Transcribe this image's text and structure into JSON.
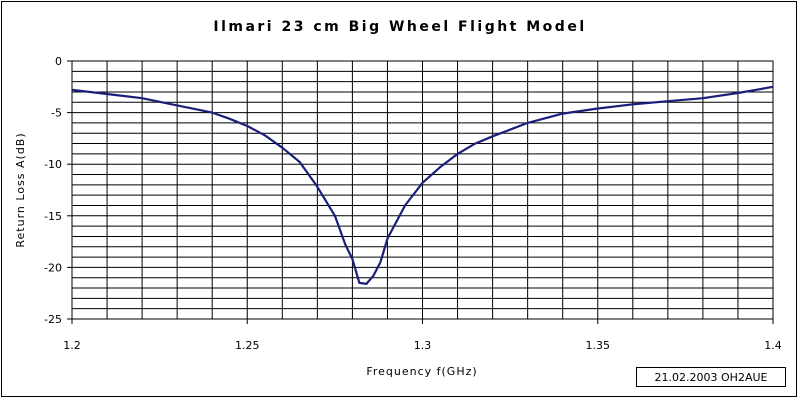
{
  "chart_data": {
    "type": "line",
    "title": "Ilmari 23 cm Big Wheel Flight Model",
    "xlabel": "Frequency f(GHz)",
    "ylabel": "Return Loss A(dB)",
    "xlim": [
      1.2,
      1.4
    ],
    "ylim": [
      -25,
      0
    ],
    "x_ticks": [
      "1.2",
      "1.25",
      "1.3",
      "1.35",
      "1.4"
    ],
    "y_ticks": [
      "0",
      "-5",
      "-10",
      "-15",
      "-20",
      "-25"
    ],
    "grid": true,
    "series": [
      {
        "color": "#1a1f7a",
        "x": [
          1.2,
          1.21,
          1.22,
          1.23,
          1.24,
          1.245,
          1.25,
          1.255,
          1.26,
          1.265,
          1.27,
          1.275,
          1.278,
          1.28,
          1.282,
          1.284,
          1.286,
          1.288,
          1.29,
          1.295,
          1.3,
          1.305,
          1.31,
          1.315,
          1.32,
          1.33,
          1.34,
          1.35,
          1.36,
          1.37,
          1.38,
          1.39,
          1.395,
          1.4
        ],
        "y": [
          -2.8,
          -3.2,
          -3.6,
          -4.3,
          -5.0,
          -5.6,
          -6.3,
          -7.2,
          -8.4,
          -9.8,
          -12.2,
          -15.0,
          -17.8,
          -19.2,
          -21.5,
          -21.6,
          -20.8,
          -19.5,
          -17.2,
          -14.0,
          -11.8,
          -10.3,
          -9.0,
          -8.0,
          -7.3,
          -6.0,
          -5.1,
          -4.6,
          -4.2,
          -3.9,
          -3.6,
          -3.1,
          -2.8,
          -2.5
        ]
      }
    ]
  },
  "stamp": "21.02.2003 OH2AUE"
}
